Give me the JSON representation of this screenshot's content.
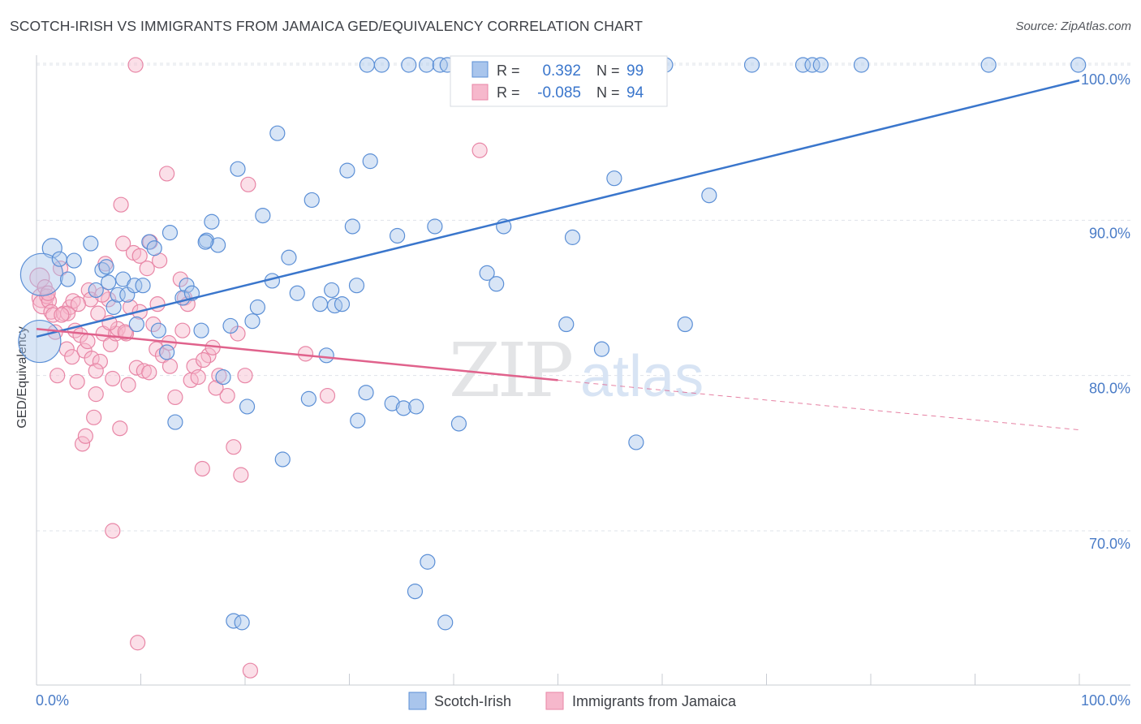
{
  "title": "SCOTCH-IRISH VS IMMIGRANTS FROM JAMAICA GED/EQUIVALENCY CORRELATION CHART",
  "source": "Source: ZipAtlas.com",
  "watermark": {
    "zip": "ZIP",
    "atlas": "atlas"
  },
  "colors": {
    "blue_fill": "#a9c5ec",
    "blue_stroke": "#5b8fd6",
    "blue_line": "#3a76cc",
    "pink_fill": "#f6b8cc",
    "pink_stroke": "#e886a6",
    "pink_line": "#e0628c",
    "grid": "#dfe3ea",
    "axis_text": "#4a7cc7",
    "value_text": "#3a76cc"
  },
  "stats": [
    {
      "r_label": "R =",
      "r_value": "0.392",
      "n_label": "N =",
      "n_value": "99"
    },
    {
      "r_label": "R =",
      "r_value": "-0.085",
      "n_label": "N =",
      "n_value": "94"
    }
  ],
  "legend": [
    "Scotch-Irish",
    "Immigrants from Jamaica"
  ],
  "chart_data": {
    "type": "scatter",
    "title": "SCOTCH-IRISH VS IMMIGRANTS FROM JAMAICA GED/EQUIVALENCY CORRELATION CHART",
    "xlabel": "",
    "ylabel": "GED/Equivalency",
    "x_tick_labels": [
      "0.0%",
      "100.0%"
    ],
    "y_tick_labels": [
      "70.0%",
      "80.0%",
      "90.0%",
      "100.0%"
    ],
    "y_ticks": [
      70,
      80,
      90,
      100
    ],
    "xlim": [
      0,
      100
    ],
    "ylim": [
      60,
      101
    ],
    "grid": true,
    "legend_position": "bottom",
    "series": [
      {
        "name": "Scotch-Irish",
        "r": 0.392,
        "n": 99,
        "trend": {
          "x": [
            0,
            100
          ],
          "y": [
            82.5,
            99.0
          ]
        },
        "points": [
          [
            1.5,
            88.2,
            5
          ],
          [
            0.5,
            86.5,
            14
          ],
          [
            0.3,
            82.2,
            14
          ],
          [
            2.2,
            87.5,
            4
          ],
          [
            3.0,
            86.2,
            4
          ],
          [
            3.6,
            87.4,
            4
          ],
          [
            5.2,
            88.5,
            4
          ],
          [
            6.3,
            86.8,
            4
          ],
          [
            6.7,
            87.0,
            4
          ],
          [
            5.7,
            85.5,
            4
          ],
          [
            6.9,
            86.0,
            4
          ],
          [
            7.4,
            84.4,
            4
          ],
          [
            7.8,
            85.2,
            4
          ],
          [
            8.7,
            85.2,
            4
          ],
          [
            8.3,
            86.2,
            4
          ],
          [
            9.4,
            85.8,
            4
          ],
          [
            10.2,
            85.8,
            4
          ],
          [
            9.6,
            83.3,
            4
          ],
          [
            10.8,
            88.6,
            4
          ],
          [
            11.3,
            88.2,
            4
          ],
          [
            11.7,
            82.9,
            4
          ],
          [
            12.8,
            89.2,
            4
          ],
          [
            12.5,
            81.5,
            4
          ],
          [
            13.3,
            77.0,
            4
          ],
          [
            14.4,
            85.8,
            4
          ],
          [
            14.0,
            85.0,
            4
          ],
          [
            14.9,
            85.3,
            4
          ],
          [
            15.8,
            82.9,
            4
          ],
          [
            16.3,
            88.7,
            4
          ],
          [
            16.8,
            89.9,
            4
          ],
          [
            17.4,
            88.4,
            4
          ],
          [
            18.6,
            83.2,
            4
          ],
          [
            19.3,
            93.3,
            4
          ],
          [
            17.9,
            79.9,
            4
          ],
          [
            20.2,
            78.0,
            4
          ],
          [
            20.7,
            83.5,
            4
          ],
          [
            21.2,
            84.4,
            4
          ],
          [
            21.7,
            90.3,
            4
          ],
          [
            22.6,
            86.1,
            4
          ],
          [
            23.1,
            95.6,
            4
          ],
          [
            23.6,
            74.6,
            4
          ],
          [
            24.2,
            87.6,
            4
          ],
          [
            25.0,
            85.3,
            4
          ],
          [
            26.1,
            78.5,
            4
          ],
          [
            26.4,
            91.3,
            4
          ],
          [
            27.2,
            84.6,
            4
          ],
          [
            27.8,
            81.3,
            4
          ],
          [
            28.3,
            85.5,
            4
          ],
          [
            28.6,
            84.5,
            4
          ],
          [
            29.3,
            84.6,
            4
          ],
          [
            29.8,
            93.2,
            4
          ],
          [
            30.3,
            89.6,
            4
          ],
          [
            30.7,
            85.8,
            4
          ],
          [
            30.8,
            77.1,
            4
          ],
          [
            31.6,
            78.9,
            4
          ],
          [
            32.0,
            93.8,
            4
          ],
          [
            33.1,
            100,
            4
          ],
          [
            34.1,
            78.2,
            4
          ],
          [
            34.6,
            89.0,
            4
          ],
          [
            35.2,
            77.9,
            4
          ],
          [
            35.7,
            100,
            4
          ],
          [
            36.4,
            78.0,
            4
          ],
          [
            37.4,
            100,
            4
          ],
          [
            36.3,
            66.1,
            4
          ],
          [
            38.2,
            89.6,
            4
          ],
          [
            38.7,
            100,
            4
          ],
          [
            39.4,
            100,
            4
          ],
          [
            40.5,
            76.9,
            4
          ],
          [
            41.3,
            100,
            4
          ],
          [
            41.9,
            100,
            4
          ],
          [
            43.2,
            86.6,
            4
          ],
          [
            44.1,
            85.9,
            4
          ],
          [
            44.8,
            89.6,
            4
          ],
          [
            47.1,
            100,
            4
          ],
          [
            48.4,
            100,
            4
          ],
          [
            50.5,
            100,
            4
          ],
          [
            50.8,
            83.3,
            4
          ],
          [
            51.4,
            88.9,
            4
          ],
          [
            52.4,
            100,
            4
          ],
          [
            54.2,
            81.7,
            4
          ],
          [
            55.4,
            92.7,
            4
          ],
          [
            56.3,
            100,
            4
          ],
          [
            57.5,
            75.7,
            4
          ],
          [
            60.3,
            100,
            4
          ],
          [
            62.2,
            83.3,
            4
          ],
          [
            64.5,
            91.6,
            4
          ],
          [
            68.6,
            100,
            4
          ],
          [
            73.5,
            100,
            4
          ],
          [
            74.4,
            100,
            4
          ],
          [
            75.2,
            100,
            4
          ],
          [
            79.1,
            100,
            4
          ],
          [
            91.3,
            100,
            4
          ],
          [
            99.9,
            100,
            4
          ],
          [
            37.5,
            68.0,
            4
          ],
          [
            39.2,
            64.1,
            4
          ],
          [
            18.9,
            64.2,
            4
          ],
          [
            19.7,
            64.1,
            4
          ],
          [
            16.2,
            88.6,
            4
          ],
          [
            31.7,
            100,
            4
          ]
        ]
      },
      {
        "name": "Immigrants from Jamaica",
        "r": -0.085,
        "n": 94,
        "trend": {
          "x": [
            0,
            50
          ],
          "y": [
            83.0,
            79.7
          ]
        },
        "trend_dashed": {
          "x": [
            50,
            100
          ],
          "y": [
            79.7,
            76.5
          ]
        },
        "points": [
          [
            0.3,
            86.3,
            6
          ],
          [
            0.5,
            85.0,
            6
          ],
          [
            0.6,
            84.6,
            6
          ],
          [
            0.8,
            85.7,
            4
          ],
          [
            1.0,
            85.1,
            4
          ],
          [
            1.2,
            84.8,
            4
          ],
          [
            1.4,
            84.1,
            4
          ],
          [
            1.6,
            83.9,
            4
          ],
          [
            1.8,
            82.8,
            4
          ],
          [
            2.0,
            80.0,
            4
          ],
          [
            2.3,
            86.9,
            4
          ],
          [
            2.6,
            84.0,
            4
          ],
          [
            2.9,
            81.7,
            4
          ],
          [
            3.2,
            84.4,
            4
          ],
          [
            3.4,
            81.2,
            4
          ],
          [
            3.7,
            82.9,
            4
          ],
          [
            3.9,
            79.6,
            4
          ],
          [
            4.2,
            82.6,
            4
          ],
          [
            4.6,
            81.6,
            4
          ],
          [
            4.4,
            75.6,
            4
          ],
          [
            4.7,
            76.1,
            4
          ],
          [
            5.0,
            85.5,
            4
          ],
          [
            5.2,
            84.9,
            4
          ],
          [
            5.3,
            81.1,
            4
          ],
          [
            5.5,
            77.3,
            4
          ],
          [
            5.7,
            78.8,
            4
          ],
          [
            5.9,
            84.0,
            4
          ],
          [
            6.1,
            80.9,
            4
          ],
          [
            6.4,
            82.7,
            4
          ],
          [
            6.6,
            87.2,
            4
          ],
          [
            6.9,
            84.9,
            4
          ],
          [
            7.1,
            82.0,
            4
          ],
          [
            7.3,
            79.8,
            4
          ],
          [
            7.6,
            82.7,
            4
          ],
          [
            7.8,
            83.0,
            4
          ],
          [
            8.1,
            91.0,
            4
          ],
          [
            8.0,
            76.6,
            4
          ],
          [
            8.3,
            88.5,
            4
          ],
          [
            8.6,
            82.7,
            4
          ],
          [
            8.8,
            79.4,
            4
          ],
          [
            9.0,
            84.4,
            4
          ],
          [
            9.3,
            87.9,
            4
          ],
          [
            9.6,
            80.5,
            4
          ],
          [
            9.9,
            87.7,
            4
          ],
          [
            10.3,
            80.3,
            4
          ],
          [
            10.6,
            86.9,
            4
          ],
          [
            10.9,
            88.6,
            4
          ],
          [
            11.2,
            83.3,
            4
          ],
          [
            11.5,
            81.7,
            4
          ],
          [
            11.8,
            87.4,
            4
          ],
          [
            12.1,
            81.3,
            4
          ],
          [
            12.5,
            93.0,
            4
          ],
          [
            12.8,
            80.6,
            4
          ],
          [
            13.3,
            78.6,
            4
          ],
          [
            13.8,
            86.2,
            4
          ],
          [
            14.2,
            85.0,
            4
          ],
          [
            14.5,
            84.6,
            4
          ],
          [
            14.8,
            79.7,
            4
          ],
          [
            15.1,
            80.6,
            4
          ],
          [
            15.9,
            74.0,
            4
          ],
          [
            16.5,
            81.3,
            4
          ],
          [
            16.9,
            81.8,
            4
          ],
          [
            17.5,
            80.0,
            4
          ],
          [
            18.3,
            78.7,
            4
          ],
          [
            18.9,
            75.4,
            4
          ],
          [
            19.3,
            82.7,
            4
          ],
          [
            19.6,
            73.6,
            4
          ],
          [
            20.0,
            80.0,
            4
          ],
          [
            20.3,
            92.3,
            4
          ],
          [
            7.3,
            70.0,
            4
          ],
          [
            9.7,
            62.8,
            4
          ],
          [
            20.5,
            61.0,
            4
          ],
          [
            25.8,
            81.4,
            4
          ],
          [
            27.9,
            78.7,
            4
          ],
          [
            42.5,
            94.5,
            4
          ],
          [
            9.5,
            100,
            4
          ],
          [
            3.0,
            84.0,
            4
          ],
          [
            2.4,
            83.9,
            4
          ],
          [
            1.1,
            85.3,
            4
          ],
          [
            3.5,
            84.8,
            4
          ],
          [
            4.0,
            84.6,
            4
          ],
          [
            4.9,
            82.2,
            4
          ],
          [
            5.7,
            80.3,
            4
          ],
          [
            6.3,
            85.2,
            4
          ],
          [
            7.0,
            83.4,
            4
          ],
          [
            8.5,
            82.8,
            4
          ],
          [
            9.9,
            84.1,
            4
          ],
          [
            10.8,
            80.2,
            4
          ],
          [
            11.6,
            84.6,
            4
          ],
          [
            12.7,
            82.1,
            4
          ],
          [
            14.0,
            82.9,
            4
          ],
          [
            15.5,
            79.9,
            4
          ],
          [
            16.0,
            81.0,
            4
          ],
          [
            17.2,
            79.2,
            4
          ]
        ]
      }
    ]
  }
}
